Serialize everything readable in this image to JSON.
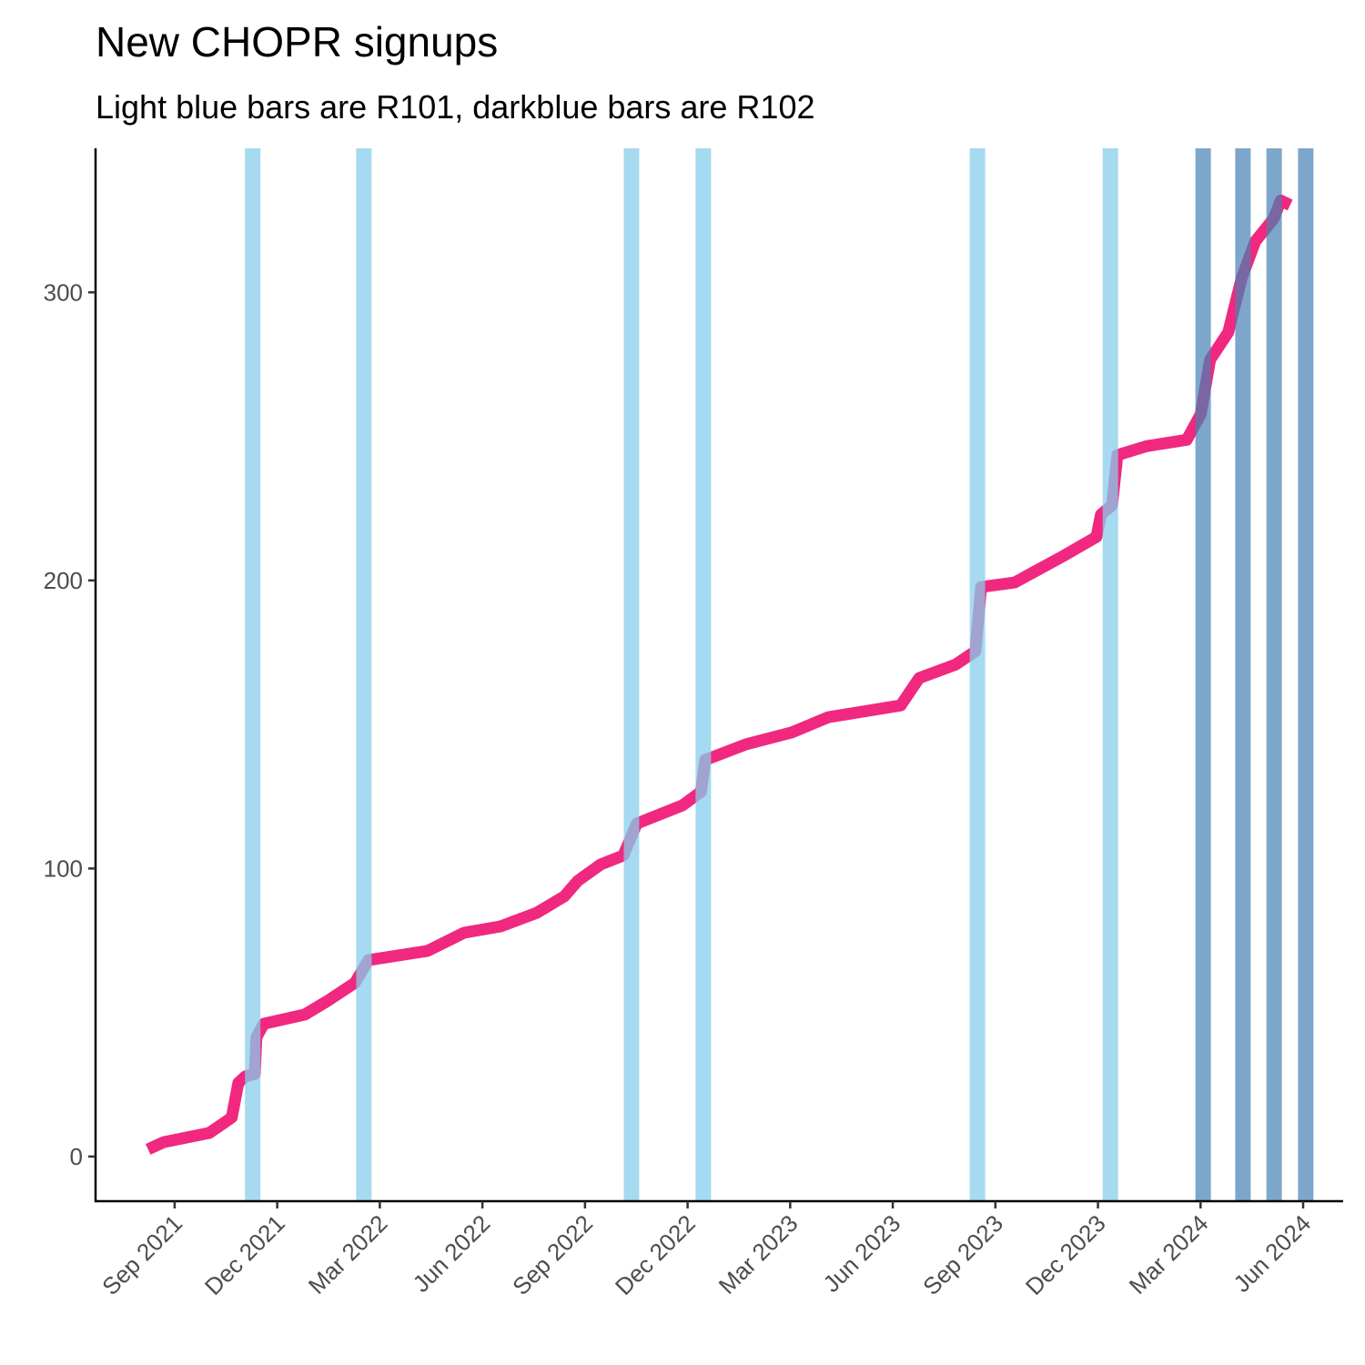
{
  "chart_data": {
    "type": "line",
    "title": "New CHOPR signups",
    "subtitle": "Light blue bars are R101, darkblue bars are R102",
    "x": [
      2021.602,
      2021.64,
      2021.696,
      2021.751,
      2021.784,
      2021.806,
      2021.822,
      2021.839,
      2021.862,
      2021.866,
      2021.884,
      2021.984,
      2022.039,
      2022.106,
      2022.139,
      2022.283,
      2022.372,
      2022.461,
      2022.549,
      2022.616,
      2022.649,
      2022.705,
      2022.76,
      2022.793,
      2022.904,
      2022.949,
      2022.96,
      2023.059,
      2023.17,
      2023.259,
      2023.436,
      2023.481,
      2023.57,
      2023.618,
      2023.632,
      2023.714,
      2023.835,
      2023.913,
      2023.924,
      2023.951,
      2023.964,
      2024.035,
      2024.133,
      2024.167,
      2024.19,
      2024.234,
      2024.267,
      2024.3,
      2024.345,
      2024.362,
      2024.385
    ],
    "series": [
      {
        "color": "#f0287f",
        "values": [
          2.5,
          5,
          6.6,
          8.2,
          11.4,
          13.6,
          25.6,
          27.8,
          28.7,
          41.4,
          46.1,
          49.3,
          54.0,
          60.3,
          68.2,
          71.4,
          77.7,
          79.9,
          84.6,
          90.3,
          95.7,
          101.4,
          104.5,
          115.6,
          121.9,
          126.6,
          137.7,
          143.1,
          147.2,
          152.5,
          156.6,
          166.1,
          170.8,
          175.4,
          197.7,
          199.3,
          208.7,
          215.1,
          222.9,
          226.1,
          243.5,
          246.6,
          248.8,
          257.7,
          276.6,
          286.1,
          305.0,
          317.7,
          325.6,
          331.9,
          330.3
        ]
      }
    ],
    "bands": [
      {
        "color": "#87ceeb",
        "x": [
          2021.857,
          2022.128,
          2022.78,
          2022.955,
          2023.623,
          2023.947
        ]
      },
      {
        "color": "#4682b4",
        "x": [
          2024.173,
          2024.27,
          2024.346,
          2024.423
        ]
      }
    ],
    "xlim": [
      2021.474,
      2024.512
    ],
    "xticks": [
      {
        "value": 2021.6667,
        "label": "Sep 2021"
      },
      {
        "value": 2021.9167,
        "label": "Dec 2021"
      },
      {
        "value": 2022.1667,
        "label": "Mar 2022"
      },
      {
        "value": 2022.4167,
        "label": "Jun 2022"
      },
      {
        "value": 2022.6667,
        "label": "Sep 2022"
      },
      {
        "value": 2022.9167,
        "label": "Dec 2022"
      },
      {
        "value": 2023.1667,
        "label": "Mar 2023"
      },
      {
        "value": 2023.4167,
        "label": "Jun 2023"
      },
      {
        "value": 2023.6667,
        "label": "Sep 2023"
      },
      {
        "value": 2023.9167,
        "label": "Dec 2023"
      },
      {
        "value": 2024.1667,
        "label": "Mar 2024"
      },
      {
        "value": 2024.4167,
        "label": "Jun 2024"
      }
    ],
    "ylim": [
      -15.5,
      350
    ],
    "yticks": [
      0,
      100,
      200,
      300
    ],
    "grid": false
  }
}
